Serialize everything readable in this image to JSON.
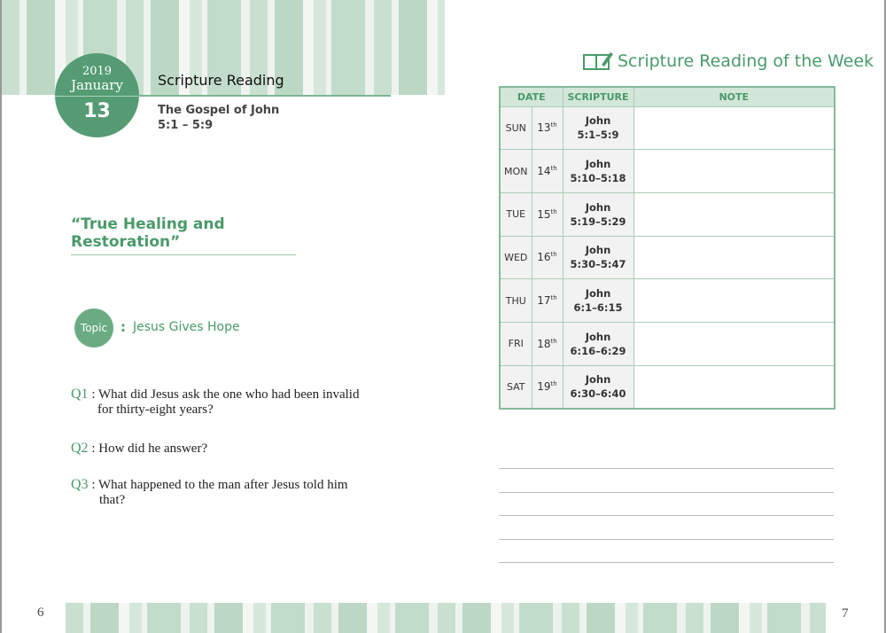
{
  "left": {
    "year": "2019",
    "month": "January",
    "day": "13",
    "header": "Scripture Reading",
    "book": "The Gospel of John",
    "passage": "5:1 – 5:9",
    "title": "“True Healing and Restoration”",
    "topic_badge": "Topic",
    "topic_sep": ":",
    "topic": "Jesus Gives Hope",
    "questions": [
      {
        "n": "Q1",
        "text": ": What did Jesus ask the one who had been invalid",
        "cont": "for thirty-eight years?"
      },
      {
        "n": "Q2",
        "text": ": How did he answer?",
        "cont": ""
      },
      {
        "n": "Q3",
        "text": ": What happened to the man after Jesus told him",
        "cont": "that?"
      }
    ],
    "page_number": "6"
  },
  "right": {
    "title": "Scripture Reading of the Week",
    "icon": "book-pen-icon",
    "headers": [
      "DATE",
      "SCRIPTURE",
      "NOTE"
    ],
    "rows": [
      {
        "day": "SUN",
        "date": "13",
        "sup": "th",
        "book": "John",
        "ref": "5:1–5:9"
      },
      {
        "day": "MON",
        "date": "14",
        "sup": "th",
        "book": "John",
        "ref": "5:10–5:18"
      },
      {
        "day": "TUE",
        "date": "15",
        "sup": "th",
        "book": "John",
        "ref": "5:19–5:29"
      },
      {
        "day": "WED",
        "date": "16",
        "sup": "th",
        "book": "John",
        "ref": "5:30–5:47"
      },
      {
        "day": "THU",
        "date": "17",
        "sup": "th",
        "book": "John",
        "ref": "6:1–6:15"
      },
      {
        "day": "FRI",
        "date": "18",
        "sup": "th",
        "book": "John",
        "ref": "6:16–6:29"
      },
      {
        "day": "SAT",
        "date": "19",
        "sup": "th",
        "book": "John",
        "ref": "6:30–6:40"
      }
    ],
    "page_number": "7"
  },
  "colors": {
    "accent": "#4a9a6a",
    "circle": "#559c74",
    "header_bg": "#d3e6da"
  }
}
